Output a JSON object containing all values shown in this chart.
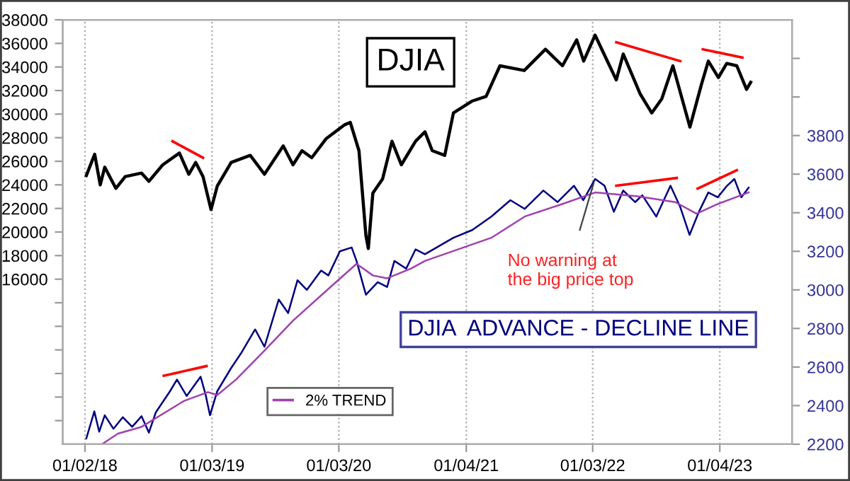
{
  "chart_data": {
    "type": "line",
    "annotations": [
      "No warning at\nthe big price top"
    ],
    "xlim": [
      "2017-10-30",
      "2023-07-31"
    ],
    "xticks": [
      {
        "value": "2018-01-02",
        "label": "01/02/18"
      },
      {
        "value": "2019-01-03",
        "label": "01/03/19"
      },
      {
        "value": "2020-01-03",
        "label": "01/03/20"
      },
      {
        "value": "2021-01-04",
        "label": "01/04/21"
      },
      {
        "value": "2022-01-03",
        "label": "01/03/22"
      },
      {
        "value": "2023-01-04",
        "label": "01/04/23"
      }
    ],
    "ylim": [
      2000,
      38000
    ],
    "yticks": [
      {
        "value": 4000,
        "label": null
      },
      {
        "value": 6000,
        "label": null
      },
      {
        "value": 8000,
        "label": null
      },
      {
        "value": 10000,
        "label": null
      },
      {
        "value": 12000,
        "label": null
      },
      {
        "value": 14000,
        "label": null
      },
      16000,
      18000,
      20000,
      22000,
      24000,
      26000,
      28000,
      30000,
      32000,
      34000,
      36000,
      38000
    ],
    "y2lim": [
      2200,
      4400
    ],
    "y2ticks": [
      2200,
      2400,
      2600,
      2800,
      3000,
      3200,
      3400,
      3600,
      3800,
      {
        "value": 4000,
        "label": null
      },
      {
        "value": 4200,
        "label": null
      }
    ],
    "grid": "x",
    "legend": "bottom left",
    "series": [
      {
        "name": "DJIA",
        "color": "#000000",
        "x": [
          "2018-01-06",
          "2018-01-30",
          "2018-02-15",
          "2018-02-28",
          "2018-04-01",
          "2018-04-28",
          "2018-06-14",
          "2018-07-05",
          "2018-08-14",
          "2018-10-01",
          "2018-10-28",
          "2018-11-17",
          "2018-12-08",
          "2018-12-31",
          "2019-01-18",
          "2019-02-27",
          "2019-04-23",
          "2019-06-03",
          "2019-07-27",
          "2019-08-24",
          "2019-09-19",
          "2019-10-17",
          "2019-11-27",
          "2020-01-20",
          "2020-02-05",
          "2020-03-01",
          "2020-03-21",
          "2020-03-28",
          "2020-04-10",
          "2020-05-08",
          "2020-06-04",
          "2020-07-01",
          "2020-08-11",
          "2020-09-07",
          "2020-09-28",
          "2020-11-03",
          "2020-11-28",
          "2021-01-20",
          "2021-03-02",
          "2021-04-11",
          "2021-06-20",
          "2021-08-20",
          "2021-10-08",
          "2021-11-18",
          "2021-12-08",
          "2022-01-10",
          "2022-02-11",
          "2022-03-12",
          "2022-04-01",
          "2022-05-20",
          "2022-06-22",
          "2022-07-21",
          "2022-08-22",
          "2022-10-10",
          "2022-11-12",
          "2022-12-02",
          "2022-12-31",
          "2023-01-24",
          "2023-02-22",
          "2023-03-22",
          "2023-04-03"
        ],
        "values": [
          24800,
          26600,
          24000,
          25500,
          23700,
          24700,
          25000,
          24300,
          25700,
          26700,
          24900,
          25900,
          24700,
          21900,
          23900,
          25900,
          26500,
          24900,
          27300,
          25700,
          26900,
          26300,
          27900,
          29100,
          29300,
          26900,
          19700,
          18600,
          23300,
          24500,
          27700,
          25700,
          27700,
          28500,
          26900,
          26500,
          30100,
          31100,
          31500,
          34100,
          33700,
          35500,
          34100,
          36300,
          34500,
          36700,
          34700,
          32900,
          35100,
          31700,
          30100,
          31300,
          34100,
          28900,
          32500,
          34500,
          33100,
          34300,
          34100,
          32100,
          32700
        ]
      },
      {
        "name": "DJIA  ADVANCE - DECLINE LINE",
        "color": "#000080",
        "axis": "y2",
        "x": [
          "2018-01-06",
          "2018-01-29",
          "2018-02-12",
          "2018-02-28",
          "2018-03-25",
          "2018-04-21",
          "2018-05-18",
          "2018-06-14",
          "2018-07-05",
          "2018-07-25",
          "2018-09-04",
          "2018-09-24",
          "2018-10-22",
          "2018-12-01",
          "2018-12-15",
          "2018-12-28",
          "2019-01-18",
          "2019-02-27",
          "2019-03-27",
          "2019-05-07",
          "2019-06-03",
          "2019-07-14",
          "2019-08-10",
          "2019-09-06",
          "2019-10-03",
          "2019-11-13",
          "2019-12-04",
          "2020-01-06",
          "2020-02-09",
          "2020-02-23",
          "2020-03-21",
          "2020-04-24",
          "2020-05-21",
          "2020-06-11",
          "2020-07-15",
          "2020-08-11",
          "2020-09-07",
          "2020-11-28",
          "2021-01-21",
          "2021-03-17",
          "2021-05-11",
          "2021-06-21",
          "2021-08-14",
          "2021-09-24",
          "2021-11-10",
          "2021-12-07",
          "2022-01-10",
          "2022-02-06",
          "2022-03-05",
          "2022-04-01",
          "2022-05-05",
          "2022-05-26",
          "2022-07-05",
          "2022-08-15",
          "2022-09-12",
          "2022-10-09",
          "2022-11-05",
          "2022-12-02",
          "2022-12-29",
          "2023-01-25",
          "2023-02-15",
          "2023-03-07",
          "2023-03-28"
        ],
        "values": [
          2230,
          2370,
          2265,
          2350,
          2280,
          2340,
          2290,
          2345,
          2260,
          2365,
          2475,
          2535,
          2450,
          2550,
          2460,
          2350,
          2475,
          2595,
          2670,
          2795,
          2705,
          2950,
          2880,
          3050,
          3000,
          3100,
          3075,
          3200,
          3220,
          3150,
          2975,
          3040,
          3015,
          3150,
          3110,
          3210,
          3185,
          3270,
          3310,
          3380,
          3465,
          3420,
          3515,
          3455,
          3540,
          3465,
          3575,
          3540,
          3405,
          3515,
          3455,
          3490,
          3380,
          3540,
          3430,
          3285,
          3405,
          3505,
          3480,
          3540,
          3575,
          3480,
          3530
        ]
      },
      {
        "name": "2% TREND",
        "color": "#a040b0",
        "axis": "y2",
        "x": [
          "2018-02-20",
          "2018-04-07",
          "2018-06-14",
          "2018-10-15",
          "2018-12-22",
          "2019-01-18",
          "2019-03-13",
          "2019-06-03",
          "2019-08-24",
          "2019-12-10",
          "2020-02-23",
          "2020-04-10",
          "2020-05-21",
          "2020-07-28",
          "2020-09-07",
          "2021-03-17",
          "2021-06-21",
          "2021-10-07",
          "2022-01-10",
          "2022-05-12",
          "2022-08-29",
          "2022-10-29",
          "2022-12-29",
          "2023-03-28"
        ],
        "values": [
          2200,
          2255,
          2290,
          2425,
          2470,
          2455,
          2535,
          2685,
          2840,
          3015,
          3135,
          3075,
          3060,
          3110,
          3150,
          3270,
          3380,
          3445,
          3505,
          3485,
          3455,
          3395,
          3445,
          3505
        ]
      },
      {
        "color": "#ff0000",
        "x": [
          "2018-09-11",
          "2018-12-08"
        ],
        "values": [
          27700,
          26300
        ]
      },
      {
        "color": "#ff0000",
        "x": [
          "2022-03-12",
          "2022-09-12"
        ],
        "values": [
          36100,
          34500
        ]
      },
      {
        "color": "#ff0000",
        "x": [
          "2022-11-16",
          "2023-03-10"
        ],
        "values": [
          35500,
          34800
        ]
      },
      {
        "color": "#ff0000",
        "axis": "y2",
        "x": [
          "2018-08-17",
          "2018-12-18"
        ],
        "values": [
          2555,
          2605
        ]
      },
      {
        "color": "#ff0000",
        "axis": "y2",
        "x": [
          "2022-03-12",
          "2022-09-02"
        ],
        "values": [
          3540,
          3580
        ]
      },
      {
        "color": "#ff0000",
        "axis": "y2",
        "x": [
          "2022-11-01",
          "2023-02-22"
        ],
        "values": [
          3525,
          3620
        ]
      }
    ]
  }
}
